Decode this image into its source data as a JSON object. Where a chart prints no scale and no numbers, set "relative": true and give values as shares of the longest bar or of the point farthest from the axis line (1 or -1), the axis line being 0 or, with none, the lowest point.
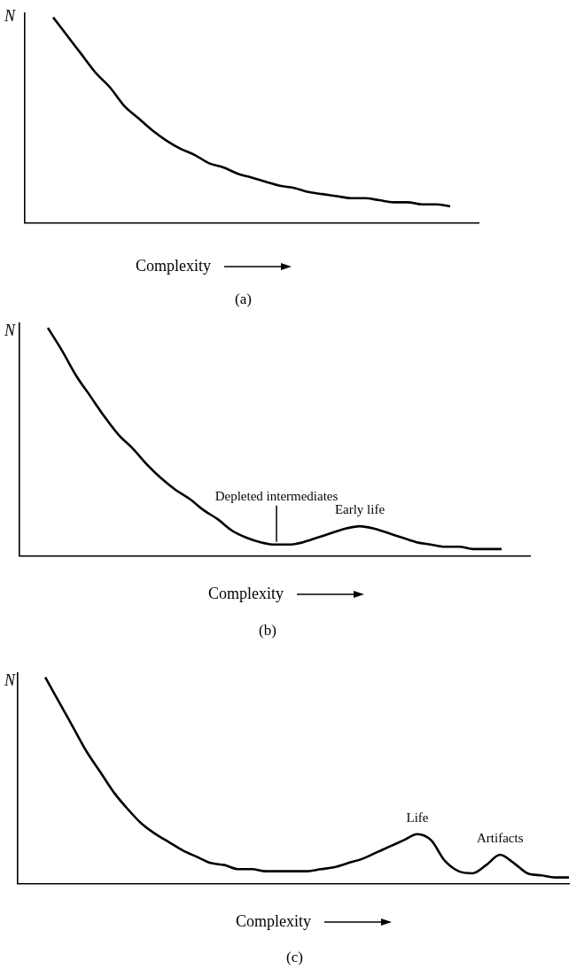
{
  "chart_data": [
    {
      "type": "line",
      "relative": true,
      "xlabel": "Complexity",
      "ylabel": "N",
      "grid": false,
      "marker": "none",
      "color": "#000000",
      "categories": [
        null,
        null,
        null,
        null,
        null,
        null,
        null,
        null,
        null,
        null,
        null,
        null,
        null,
        null,
        null,
        null,
        null,
        null,
        null,
        null,
        null,
        null,
        null,
        null,
        null,
        null,
        null,
        null,
        null,
        null,
        null,
        null,
        null
      ],
      "values": [
        null,
        null,
        1,
        0.91,
        0.82,
        0.73,
        0.66,
        0.57,
        0.51,
        0.45,
        0.4,
        0.36,
        0.33,
        0.29,
        0.27,
        0.24,
        0.22,
        0.2,
        0.18,
        0.17,
        0.15,
        0.14,
        0.13,
        0.12,
        0.12,
        0.11,
        0.1,
        0.1,
        0.09,
        0.09,
        0.08,
        null,
        null
      ],
      "annotations": [
        "(a)"
      ]
    },
    {
      "type": "line",
      "relative": true,
      "xlabel": "Complexity",
      "ylabel": "N",
      "grid": false,
      "marker": "none",
      "color": "#000000",
      "categories": [
        null,
        null,
        null,
        null,
        null,
        null,
        null,
        null,
        null,
        null,
        null,
        null,
        null,
        null,
        null,
        null,
        null,
        null,
        null,
        null,
        null,
        null,
        null,
        null,
        null,
        null,
        null,
        null,
        null,
        null,
        null,
        null,
        null,
        null,
        null,
        null,
        null
      ],
      "values": [
        null,
        null,
        1,
        0.9,
        0.79,
        0.7,
        0.61,
        0.53,
        0.47,
        0.4,
        0.34,
        0.29,
        0.25,
        0.2,
        0.16,
        0.11,
        0.08,
        0.06,
        0.05,
        0.05,
        0.06,
        0.08,
        0.1,
        0.12,
        0.13,
        0.12,
        0.1,
        0.08,
        0.06,
        0.05,
        0.04,
        0.04,
        0.03,
        0.03,
        0.03,
        null,
        null
      ],
      "annotations": [
        {
          "text": "Depleted intermediates",
          "y": 0.05
        },
        {
          "text": "Early life",
          "y": 0.13
        },
        "(b)"
      ]
    },
    {
      "type": "line",
      "relative": true,
      "xlabel": "Complexity",
      "ylabel": "N",
      "grid": false,
      "marker": "none",
      "color": "#000000",
      "categories": [
        null,
        null,
        null,
        null,
        null,
        null,
        null,
        null,
        null,
        null,
        null,
        null,
        null,
        null,
        null,
        null,
        null,
        null,
        null,
        null,
        null,
        null,
        null,
        null,
        null,
        null,
        null,
        null,
        null,
        null,
        null,
        null,
        null,
        null,
        null,
        null,
        null,
        null,
        null,
        null,
        null
      ],
      "values": [
        null,
        null,
        1,
        0.88,
        0.76,
        0.64,
        0.54,
        0.44,
        0.36,
        0.29,
        0.24,
        0.2,
        0.16,
        0.13,
        0.1,
        0.09,
        0.07,
        0.07,
        0.06,
        0.06,
        0.06,
        0.06,
        0.07,
        0.08,
        0.1,
        0.12,
        0.15,
        0.18,
        0.21,
        0.24,
        0.21,
        0.11,
        0.06,
        0.05,
        0.09,
        0.14,
        0.1,
        0.05,
        0.04,
        0.03,
        0.03
      ],
      "annotations": [
        {
          "text": "Life",
          "y": 0.24
        },
        {
          "text": "Artifacts",
          "y": 0.14
        },
        "(c)"
      ]
    }
  ]
}
